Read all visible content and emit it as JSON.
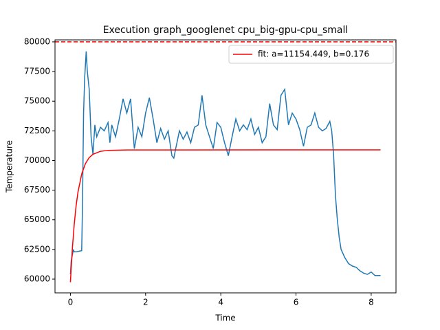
{
  "chart_data": {
    "type": "line",
    "title": "Execution graph_googlenet cpu_big-gpu-cpu_small",
    "x_label": "Time",
    "y_label": "Temperature",
    "xlim": [
      -0.41,
      8.66
    ],
    "ylim": [
      58840,
      80170
    ],
    "xticks": [
      0,
      2,
      4,
      6,
      8
    ],
    "yticks": [
      60000,
      62500,
      65000,
      67500,
      70000,
      72500,
      75000,
      77500,
      80000
    ],
    "legend": "upper right",
    "reference_line": {
      "y": 80000,
      "color": "#ff0000",
      "dashed": true
    },
    "series": [
      {
        "color": "#1f77b4",
        "x": [
          0,
          0.02,
          0.05,
          0.08,
          0.1,
          0.15,
          0.3,
          0.32,
          0.35,
          0.38,
          0.42,
          0.45,
          0.5,
          0.55,
          0.6,
          0.65,
          0.7,
          0.8,
          0.9,
          1.0,
          1.05,
          1.1,
          1.2,
          1.3,
          1.4,
          1.5,
          1.6,
          1.7,
          1.8,
          1.9,
          2.0,
          2.1,
          2.2,
          2.3,
          2.4,
          2.5,
          2.6,
          2.7,
          2.75,
          2.8,
          2.9,
          3.0,
          3.1,
          3.2,
          3.3,
          3.4,
          3.5,
          3.6,
          3.7,
          3.8,
          3.9,
          4.0,
          4.1,
          4.2,
          4.3,
          4.4,
          4.5,
          4.6,
          4.7,
          4.8,
          4.9,
          5.0,
          5.1,
          5.2,
          5.3,
          5.4,
          5.5,
          5.6,
          5.7,
          5.8,
          5.9,
          6.0,
          6.1,
          6.2,
          6.3,
          6.4,
          6.5,
          6.6,
          6.7,
          6.8,
          6.9,
          6.95,
          7.0,
          7.05,
          7.1,
          7.15,
          7.2,
          7.3,
          7.4,
          7.5,
          7.6,
          7.7,
          7.8,
          7.9,
          8.0,
          8.1,
          8.25
        ],
        "values": [
          60400,
          61500,
          62000,
          62500,
          62300,
          62300,
          62400,
          66000,
          74000,
          77000,
          79200,
          77500,
          76000,
          72000,
          70500,
          73000,
          72000,
          72800,
          72500,
          73200,
          71500,
          73000,
          72000,
          73500,
          75200,
          74000,
          75200,
          71000,
          72800,
          72000,
          74000,
          75300,
          73500,
          71500,
          72700,
          71800,
          72500,
          70400,
          70200,
          71000,
          72500,
          71800,
          72400,
          71500,
          72800,
          73000,
          75500,
          73000,
          72000,
          71000,
          73200,
          72800,
          71500,
          70400,
          72000,
          73500,
          72500,
          73000,
          72600,
          73500,
          72200,
          72800,
          71500,
          72000,
          74800,
          73000,
          72600,
          75500,
          76000,
          73000,
          74000,
          73500,
          72600,
          71200,
          72800,
          73000,
          74000,
          72800,
          72500,
          72700,
          73300,
          72500,
          70500,
          67000,
          65000,
          63500,
          62500,
          61800,
          61300,
          61100,
          61000,
          60700,
          60500,
          60400,
          60600,
          60300,
          60300
        ]
      },
      {
        "name": "fit: a=11154.449, b=0.176",
        "color": "#ff0000",
        "x": [
          0,
          0.05,
          0.1,
          0.15,
          0.2,
          0.3,
          0.4,
          0.5,
          0.6,
          0.8,
          1.0,
          1.5,
          8.25
        ],
        "values": [
          59740,
          62495,
          64570,
          66142,
          67314,
          68864,
          69745,
          70247,
          70526,
          70776,
          70856,
          70892,
          70894
        ]
      }
    ]
  }
}
